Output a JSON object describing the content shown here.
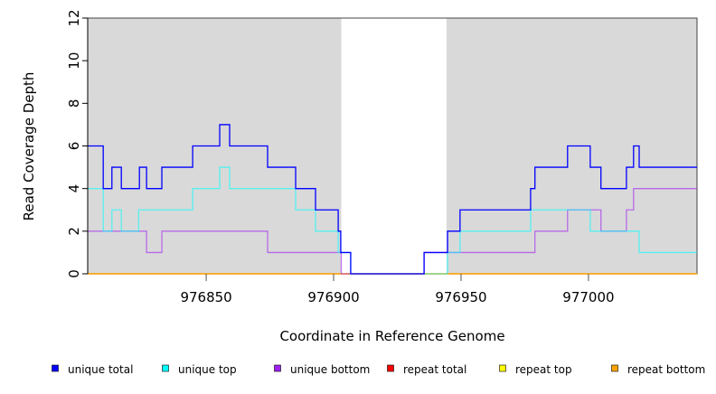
{
  "chart_data": {
    "type": "line",
    "step": true,
    "xlabel": "Coordinate in Reference Genome",
    "ylabel": "Read Coverage Depth",
    "xlim": [
      976803.5,
      977042.6
    ],
    "ylim": [
      0,
      12
    ],
    "xticks": [
      976850,
      976900,
      976950,
      977000
    ],
    "xtick_labels": [
      "976850",
      "976900",
      "976950",
      "977000"
    ],
    "yticks": [
      0,
      2,
      4,
      6,
      8,
      10,
      12
    ],
    "ytick_labels": [
      "0",
      "2",
      "4",
      "6",
      "8",
      "10",
      "12"
    ],
    "shaded_regions": [
      [
        976803.5,
        976903
      ],
      [
        976944.3,
        977042.6
      ]
    ],
    "legend_placement": "bottom",
    "series": [
      {
        "name": "unique total",
        "color": "#0000ff",
        "steps": [
          [
            976803.5,
            6
          ],
          [
            976809.6,
            4
          ],
          [
            976813,
            5
          ],
          [
            976816.7,
            4
          ],
          [
            976823.8,
            5
          ],
          [
            976826.6,
            4
          ],
          [
            976832.6,
            5
          ],
          [
            976844.7,
            6
          ],
          [
            976855.3,
            7
          ],
          [
            976859.2,
            6
          ],
          [
            976874.1,
            5
          ],
          [
            976885.1,
            4
          ],
          [
            976892.9,
            3
          ],
          [
            976901.8,
            2
          ],
          [
            976902.8,
            1
          ],
          [
            976906.7,
            0
          ],
          [
            976935.5,
            1
          ],
          [
            976944.7,
            2
          ],
          [
            976949.6,
            3
          ],
          [
            976977.3,
            4
          ],
          [
            976979,
            5
          ],
          [
            976991.8,
            6
          ],
          [
            977000.7,
            5
          ],
          [
            977004.9,
            4
          ],
          [
            977014.9,
            5
          ],
          [
            977017.7,
            6
          ],
          [
            977019.9,
            5
          ],
          [
            977042.6,
            5
          ]
        ]
      },
      {
        "name": "unique top",
        "color": "#00ffff",
        "steps": [
          [
            976803.5,
            4
          ],
          [
            976809.6,
            2
          ],
          [
            976813,
            3
          ],
          [
            976816.7,
            2
          ],
          [
            976823.5,
            3
          ],
          [
            976844.7,
            4
          ],
          [
            976855.3,
            5
          ],
          [
            976859.2,
            4
          ],
          [
            976885.1,
            3
          ],
          [
            976892.9,
            2
          ],
          [
            976901.8,
            1
          ],
          [
            976906.7,
            0
          ],
          [
            976944.7,
            1
          ],
          [
            976949.6,
            2
          ],
          [
            976977.3,
            3
          ],
          [
            977000.7,
            2
          ],
          [
            977019.9,
            1
          ],
          [
            977042.6,
            1
          ]
        ]
      },
      {
        "name": "unique bottom",
        "color": "#a020f0",
        "steps": [
          [
            976803.5,
            2
          ],
          [
            976826.6,
            1
          ],
          [
            976832.6,
            2
          ],
          [
            976874.1,
            1
          ],
          [
            976903,
            0
          ],
          [
            976935.5,
            1
          ],
          [
            976979,
            2
          ],
          [
            976991.8,
            3
          ],
          [
            977004.9,
            2
          ],
          [
            977014.9,
            3
          ],
          [
            977017.7,
            4
          ],
          [
            977042.6,
            4
          ]
        ]
      },
      {
        "name": "repeat total",
        "color": "#ff0000",
        "steps": [
          [
            976803.5,
            0
          ],
          [
            977042.6,
            0
          ]
        ]
      },
      {
        "name": "repeat top",
        "color": "#ffff00",
        "steps": [
          [
            976803.5,
            0
          ],
          [
            977042.6,
            0
          ]
        ]
      },
      {
        "name": "repeat bottom",
        "color": "#ffa500",
        "steps": [
          [
            976803.5,
            0
          ],
          [
            977042.6,
            0
          ]
        ]
      }
    ]
  }
}
